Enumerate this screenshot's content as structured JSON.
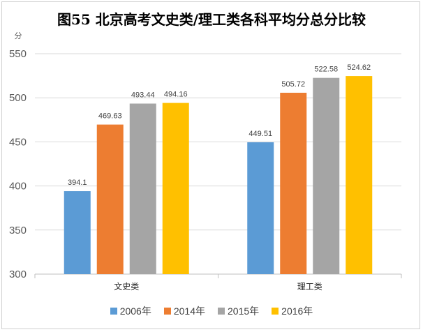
{
  "chart_data": {
    "type": "bar",
    "title": "图55 北京高考文史类/理工类各科平均分总分比较",
    "yunit": "分",
    "ylim": [
      300,
      550
    ],
    "yticks": [
      300,
      350,
      400,
      450,
      500,
      550
    ],
    "grid": true,
    "legend_position": "bottom",
    "categories": [
      "文史类",
      "理工类"
    ],
    "series": [
      {
        "name": "2006年",
        "color": "#5b9bd5",
        "values": [
          394.1,
          449.51
        ],
        "labels": [
          "394.1",
          "449.51"
        ]
      },
      {
        "name": "2014年",
        "color": "#ed7d31",
        "values": [
          469.63,
          505.72
        ],
        "labels": [
          "469.63",
          "505.72"
        ]
      },
      {
        "name": "2015年",
        "color": "#a5a5a5",
        "values": [
          493.44,
          522.58
        ],
        "labels": [
          "493.44",
          "522.58"
        ]
      },
      {
        "name": "2016年",
        "color": "#ffc000",
        "values": [
          494.16,
          524.62
        ],
        "labels": [
          "494.16",
          "524.62"
        ]
      }
    ]
  }
}
